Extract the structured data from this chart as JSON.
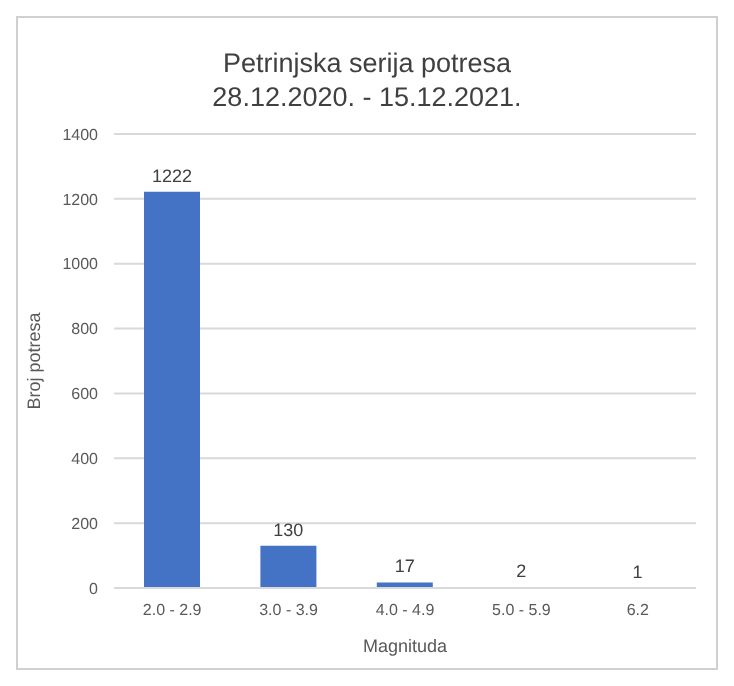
{
  "chart_data": {
    "type": "bar",
    "title": "Petrinjska serija potresa",
    "subtitle": "28.12.2020. - 15.12.2021.",
    "xlabel": "Magnituda",
    "ylabel": "Broj potresa",
    "categories": [
      "2.0 - 2.9",
      "3.0 - 3.9",
      "4.0 - 4.9",
      "5.0 - 5.9",
      "6.2"
    ],
    "values": [
      1222,
      130,
      17,
      2,
      1
    ],
    "color": "#4472c4",
    "ylim": [
      0,
      1400
    ],
    "yticks": [
      0,
      200,
      400,
      600,
      800,
      1000,
      1200,
      1400
    ],
    "grid": "y",
    "data_labels": true
  }
}
